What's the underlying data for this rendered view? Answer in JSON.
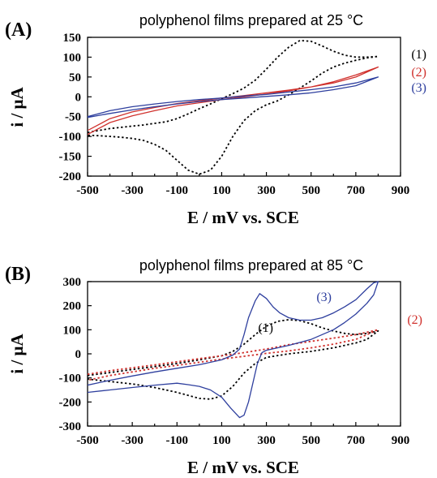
{
  "chart_data": [
    {
      "type": "line",
      "panel_label": "(A)",
      "title": "polyphenol films prepared at 25 °C",
      "xlabel": "E / mV vs. SCE",
      "ylabel": "i / μA",
      "xlim": [
        -500,
        900
      ],
      "ylim": [
        -200,
        150
      ],
      "xticks": [
        -500,
        -300,
        -100,
        100,
        300,
        500,
        700,
        900
      ],
      "yticks": [
        -200,
        -150,
        -100,
        -50,
        0,
        50,
        100,
        150
      ],
      "grid": false,
      "legend": "inline labels at right",
      "series": [
        {
          "name": "(1)",
          "color": "#000000",
          "style": "dotted",
          "x": [
            -500,
            -450,
            -400,
            -350,
            -300,
            -250,
            -200,
            -150,
            -100,
            -50,
            0,
            50,
            100,
            150,
            200,
            250,
            300,
            350,
            400,
            450,
            500,
            550,
            600,
            650,
            700,
            750,
            800,
            750,
            700,
            650,
            600,
            550,
            500,
            450,
            400,
            350,
            300,
            250,
            200,
            150,
            100,
            50,
            0,
            -50,
            -100,
            -150,
            -200,
            -250,
            -300,
            -350,
            -400,
            -450,
            -500
          ],
          "y": [
            -90,
            -85,
            -80,
            -77,
            -74,
            -71,
            -67,
            -63,
            -55,
            -43,
            -30,
            -18,
            -5,
            8,
            22,
            42,
            70,
            100,
            125,
            142,
            140,
            128,
            115,
            105,
            100,
            100,
            102,
            98,
            92,
            85,
            75,
            60,
            40,
            22,
            5,
            -10,
            -20,
            -35,
            -60,
            -100,
            -150,
            -185,
            -195,
            -185,
            -160,
            -135,
            -120,
            -110,
            -105,
            -102,
            -100,
            -98,
            -97
          ]
        },
        {
          "name": "(2)",
          "color": "#d0312d",
          "style": "solid",
          "x": [
            -500,
            -400,
            -300,
            -200,
            -100,
            0,
            100,
            200,
            300,
            400,
            500,
            600,
            700,
            800,
            700,
            600,
            500,
            400,
            300,
            200,
            100,
            0,
            -100,
            -200,
            -300,
            -400,
            -500
          ],
          "y": [
            -85,
            -55,
            -38,
            -27,
            -17,
            -10,
            -3,
            3,
            10,
            17,
            25,
            35,
            50,
            75,
            55,
            38,
            25,
            15,
            7,
            0,
            -7,
            -15,
            -23,
            -35,
            -48,
            -65,
            -95
          ]
        },
        {
          "name": "(3)",
          "color": "#2e3f9e",
          "style": "solid",
          "x": [
            -500,
            -400,
            -300,
            -200,
            -100,
            0,
            100,
            200,
            300,
            400,
            500,
            600,
            700,
            800,
            700,
            600,
            500,
            400,
            300,
            200,
            100,
            0,
            -100,
            -200,
            -300,
            -400,
            -500
          ],
          "y": [
            -50,
            -35,
            -25,
            -18,
            -12,
            -7,
            -3,
            2,
            6,
            12,
            18,
            25,
            35,
            50,
            28,
            18,
            10,
            5,
            1,
            -3,
            -7,
            -12,
            -18,
            -25,
            -33,
            -42,
            -52
          ]
        }
      ]
    },
    {
      "type": "line",
      "panel_label": "(B)",
      "title": "polyphenol films prepared at 85 °C",
      "xlabel": "E / mV vs. SCE",
      "ylabel": "i / μA",
      "xlim": [
        -500,
        900
      ],
      "ylim": [
        -300,
        300
      ],
      "xticks": [
        -500,
        -300,
        -100,
        100,
        300,
        500,
        700,
        900
      ],
      "yticks": [
        -300,
        -200,
        -100,
        0,
        100,
        200,
        300
      ],
      "grid": false,
      "legend": "inline labels",
      "series": [
        {
          "name": "(1)",
          "color": "#000000",
          "style": "dotted",
          "x": [
            -500,
            -400,
            -300,
            -200,
            -100,
            0,
            100,
            150,
            200,
            250,
            300,
            350,
            400,
            450,
            500,
            550,
            600,
            650,
            700,
            750,
            800,
            750,
            700,
            650,
            600,
            500,
            400,
            300,
            250,
            200,
            150,
            100,
            50,
            0,
            -100,
            -200,
            -300,
            -400,
            -500
          ],
          "y": [
            -90,
            -78,
            -65,
            -53,
            -40,
            -25,
            -8,
            10,
            40,
            80,
            115,
            135,
            142,
            138,
            125,
            108,
            95,
            85,
            80,
            85,
            95,
            60,
            45,
            35,
            25,
            10,
            0,
            -15,
            -40,
            -80,
            -135,
            -175,
            -188,
            -185,
            -160,
            -140,
            -125,
            -115,
            -105
          ]
        },
        {
          "name": "(2)",
          "color": "#d0312d",
          "style": "dotted",
          "x": [
            -500,
            -400,
            -300,
            -200,
            -100,
            0,
            100,
            200,
            300,
            400,
            500,
            600,
            700,
            800,
            700,
            600,
            500,
            400,
            300,
            200,
            100,
            0,
            -100,
            -200,
            -300,
            -400,
            -500
          ],
          "y": [
            -85,
            -70,
            -58,
            -46,
            -33,
            -20,
            -8,
            5,
            20,
            38,
            52,
            65,
            80,
            100,
            60,
            40,
            25,
            12,
            2,
            -10,
            -22,
            -35,
            -48,
            -60,
            -75,
            -90,
            -110
          ]
        },
        {
          "name": "(3)",
          "color": "#2e3f9e",
          "style": "solid",
          "x": [
            -500,
            -400,
            -300,
            -200,
            -100,
            0,
            100,
            150,
            180,
            200,
            220,
            250,
            270,
            300,
            330,
            360,
            400,
            450,
            500,
            550,
            600,
            650,
            700,
            750,
            780,
            800,
            780,
            750,
            700,
            650,
            600,
            500,
            400,
            300,
            280,
            260,
            240,
            220,
            200,
            180,
            160,
            140,
            100,
            50,
            0,
            -50,
            -100,
            -200,
            -300,
            -400,
            -500
          ],
          "y": [
            -130,
            -110,
            -92,
            -75,
            -60,
            -45,
            -25,
            -5,
            20,
            80,
            150,
            220,
            250,
            230,
            195,
            170,
            150,
            140,
            140,
            150,
            170,
            195,
            225,
            270,
            295,
            300,
            245,
            210,
            165,
            130,
            100,
            60,
            35,
            15,
            5,
            -40,
            -120,
            -200,
            -255,
            -265,
            -245,
            -225,
            -180,
            -150,
            -135,
            -128,
            -122,
            -130,
            -140,
            -150,
            -160
          ]
        }
      ]
    }
  ]
}
